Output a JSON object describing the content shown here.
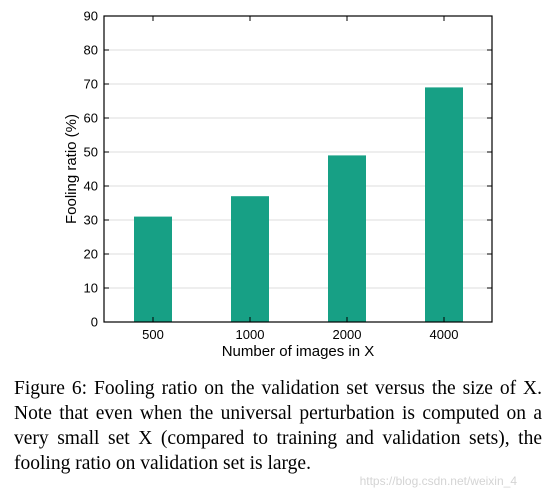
{
  "chart_data": {
    "type": "bar",
    "categories": [
      "500",
      "1000",
      "2000",
      "4000"
    ],
    "values": [
      31,
      37,
      49,
      69
    ],
    "xlabel": "Number of images in X",
    "ylabel": "Fooling ratio (%)",
    "ylim": [
      0,
      90
    ],
    "yticks": [
      0,
      10,
      20,
      30,
      40,
      50,
      60,
      70,
      80,
      90
    ],
    "grid": true,
    "bar_color": "#17a085"
  },
  "caption": {
    "text": "Figure 6: Fooling ratio on the validation set versus the size of X. Note that even when the universal perturbation is computed on a very small set X (compared to training and validation sets), the fooling ratio on validation set is large."
  },
  "watermark": {
    "text": "https://blog.csdn.net/weixin_4"
  }
}
